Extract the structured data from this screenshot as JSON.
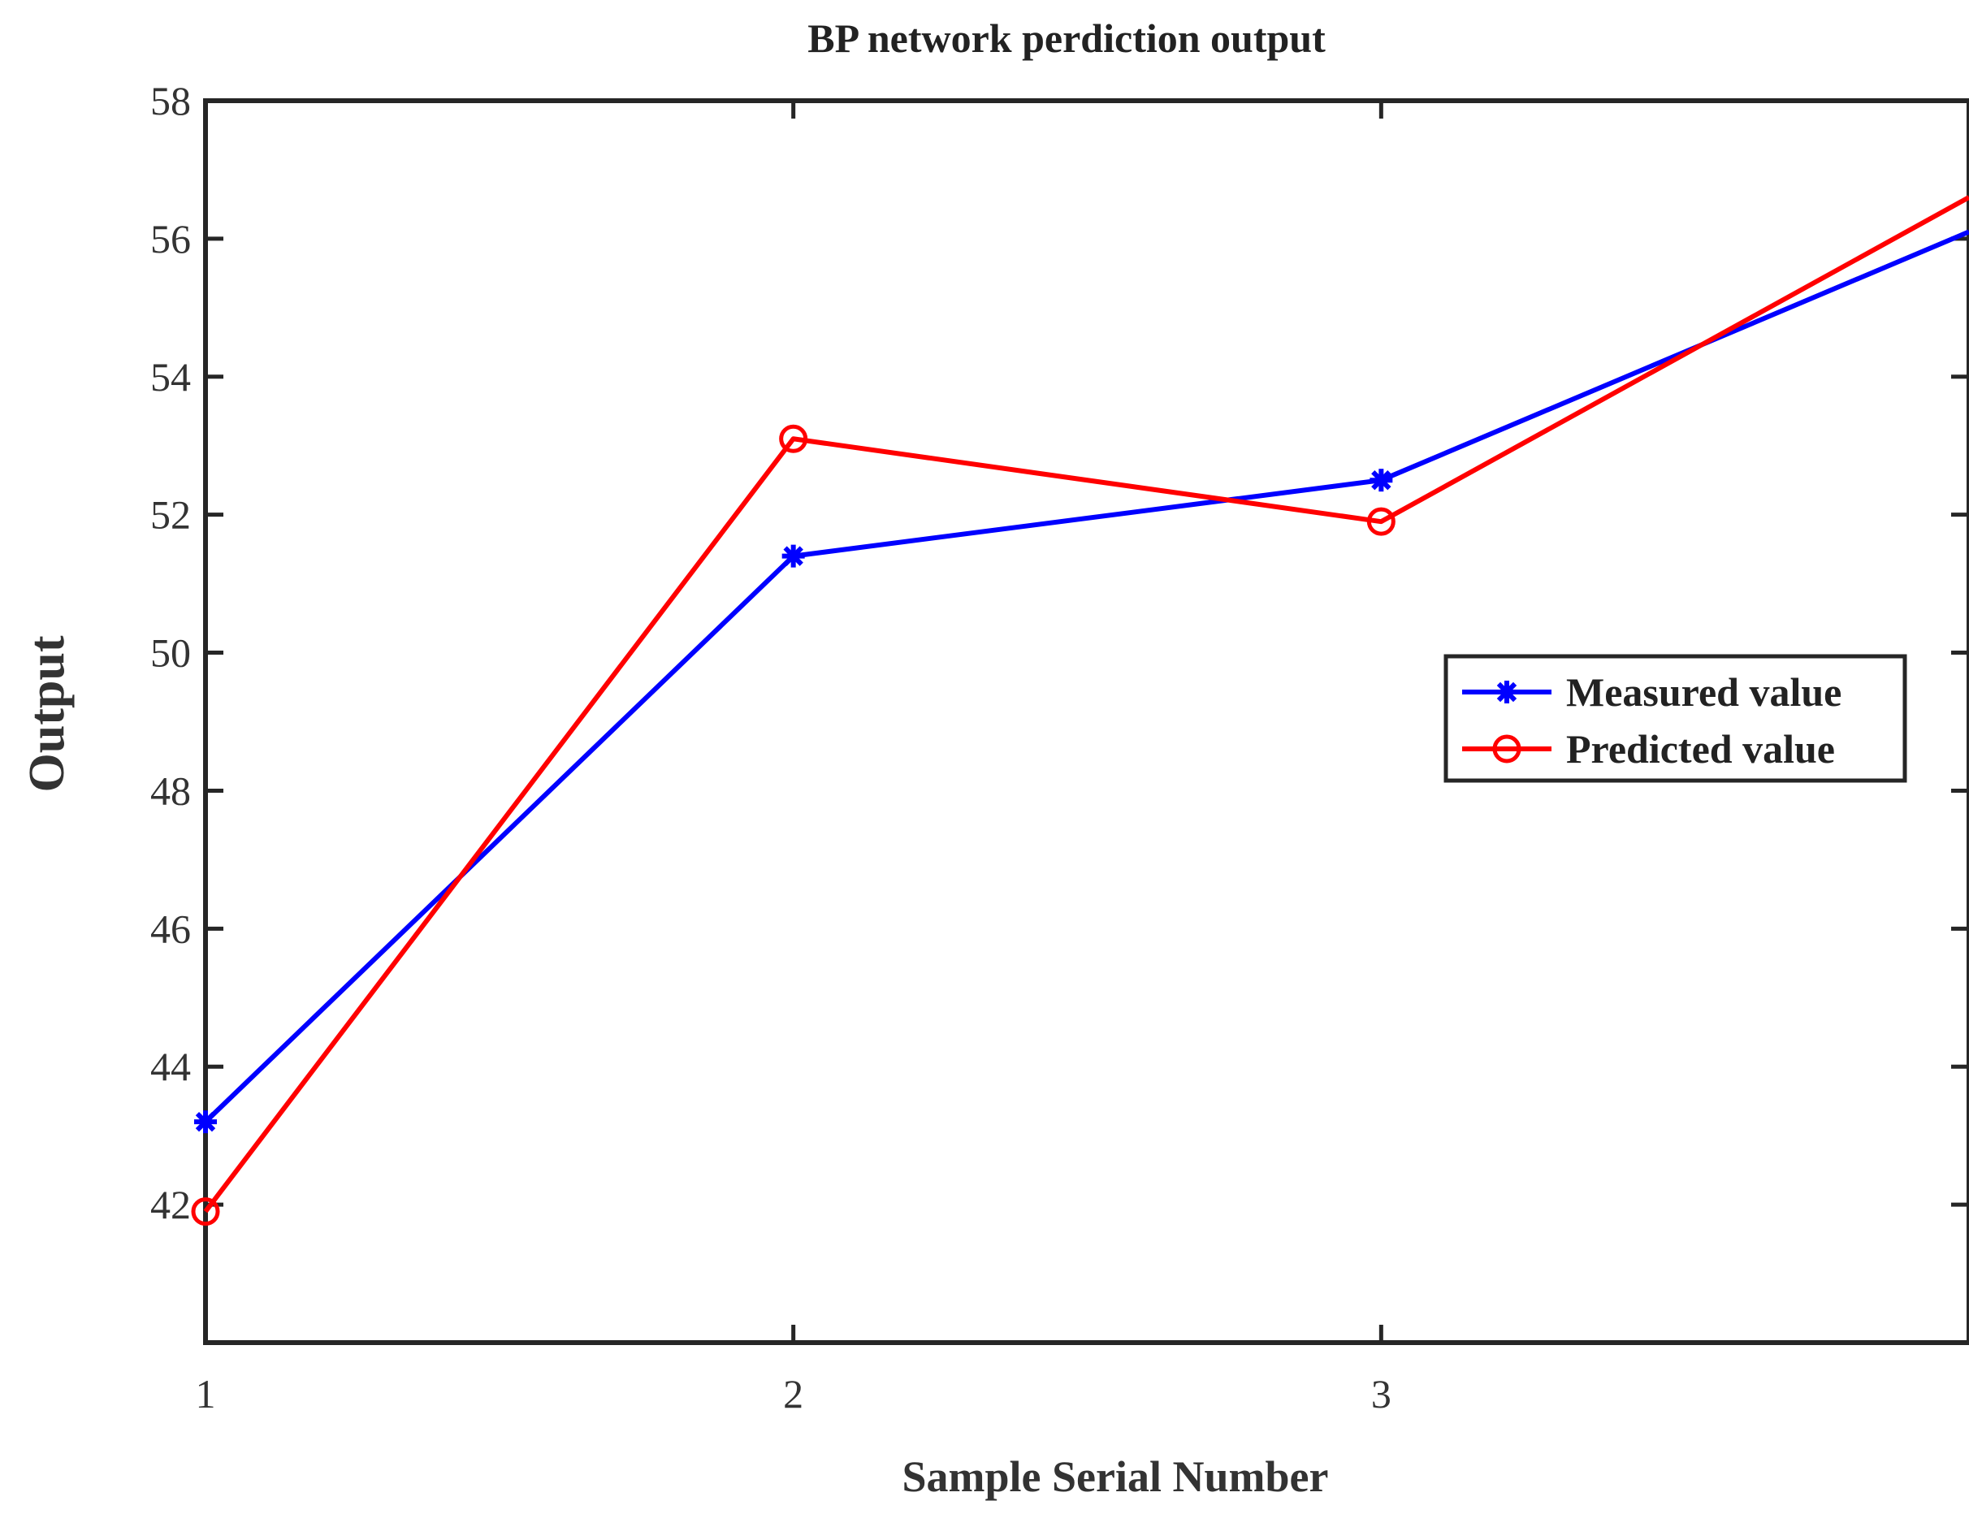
{
  "chart_data": {
    "type": "line",
    "title": "BP network perdiction output",
    "xlabel": "Sample Serial Number",
    "ylabel": "Output",
    "xlim": [
      1,
      4
    ],
    "ylim": [
      40,
      58
    ],
    "xticks": [
      1,
      2,
      3
    ],
    "yticks": [
      42,
      44,
      46,
      48,
      50,
      52,
      54,
      56,
      58
    ],
    "xtick_labels": [
      "1",
      "2",
      "3"
    ],
    "ytick_labels": [
      "42",
      "44",
      "46",
      "48",
      "50",
      "52",
      "54",
      "56",
      "58"
    ],
    "grid": false,
    "legend_position": "right",
    "series": [
      {
        "name": "Measured value",
        "color": "#0000ff",
        "marker": "asterisk",
        "x": [
          1,
          2,
          3,
          4
        ],
        "y": [
          43.2,
          51.4,
          52.5,
          56.1
        ]
      },
      {
        "name": "Predicted value",
        "color": "#ff0000",
        "marker": "circle",
        "x": [
          1,
          2,
          3,
          4
        ],
        "y": [
          41.9,
          53.1,
          51.9,
          56.6
        ]
      }
    ]
  }
}
